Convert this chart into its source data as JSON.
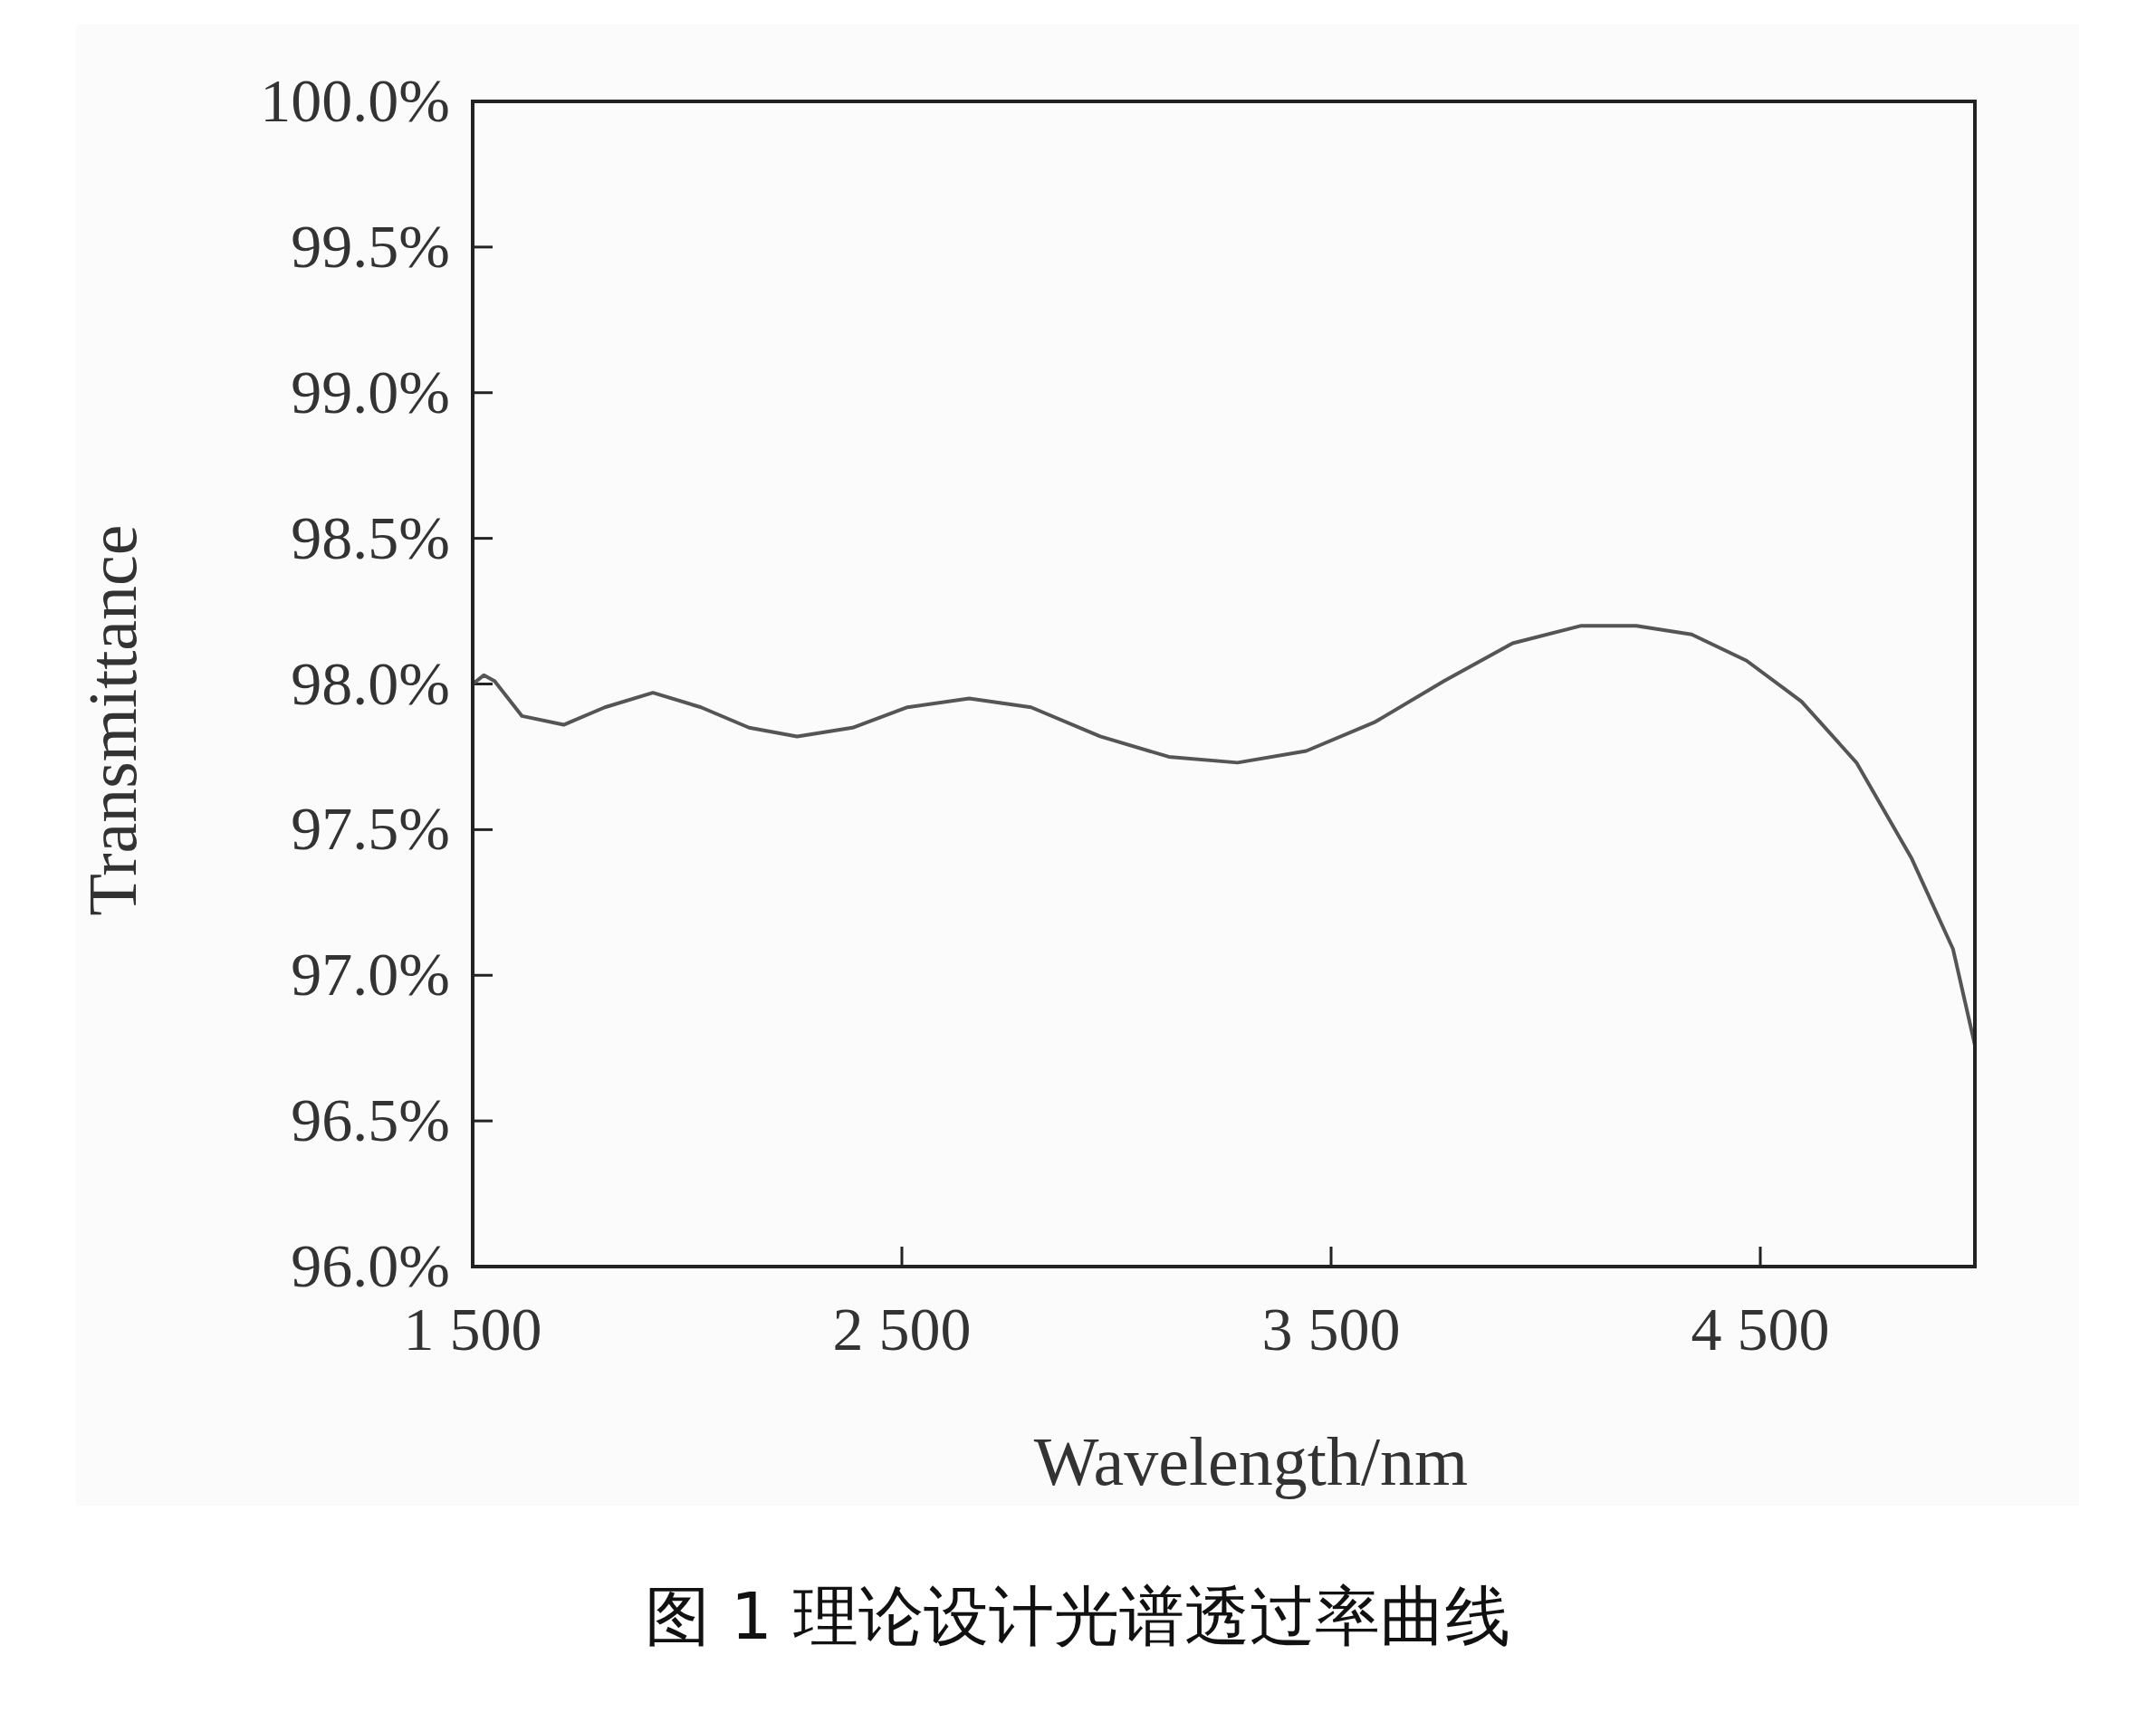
{
  "chart_data": {
    "type": "line",
    "xlabel": "Wavelength/nm",
    "ylabel": "Transmittance",
    "annotations": [
      "图 1  理论设计光谱透过率曲线"
    ],
    "xlim": [
      1500,
      5000
    ],
    "xticks": [
      {
        "value": 1500,
        "label": "1 500"
      },
      {
        "value": 2500,
        "label": "2 500"
      },
      {
        "value": 3500,
        "label": "3 500"
      },
      {
        "value": 4500,
        "label": "4 500"
      }
    ],
    "ylim": [
      96,
      100
    ],
    "yticks": [
      {
        "value": 96,
        "label": "96.0%"
      },
      {
        "value": 96.5,
        "label": "96.5%"
      },
      {
        "value": 97,
        "label": "97.0%"
      },
      {
        "value": 97.5,
        "label": "97.5%"
      },
      {
        "value": 98,
        "label": "98.0%"
      },
      {
        "value": 98.5,
        "label": "98.5%"
      },
      {
        "value": 99,
        "label": "99.0%"
      },
      {
        "value": 99.5,
        "label": "99.5%"
      },
      {
        "value": 100,
        "label": "100.0%"
      }
    ],
    "grid": false,
    "marker": "none",
    "line_style": "solid",
    "series": [
      {
        "color": "#555555",
        "x": [
          1500,
          1526,
          1551,
          1615,
          1712,
          1808,
          1920,
          2032,
          2144,
          2256,
          2385,
          2513,
          2657,
          2801,
          2962,
          3122,
          3282,
          3442,
          3603,
          3763,
          3923,
          4083,
          4211,
          4340,
          4468,
          4596,
          4724,
          4853,
          4949,
          5000
        ],
        "values": [
          98.0,
          98.03,
          98.01,
          97.89,
          97.86,
          97.92,
          97.97,
          97.92,
          97.85,
          97.82,
          97.85,
          97.92,
          97.95,
          97.92,
          97.82,
          97.75,
          97.73,
          97.77,
          97.87,
          98.01,
          98.14,
          98.2,
          98.2,
          98.17,
          98.08,
          97.94,
          97.73,
          97.4,
          97.09,
          96.76
        ]
      }
    ]
  }
}
